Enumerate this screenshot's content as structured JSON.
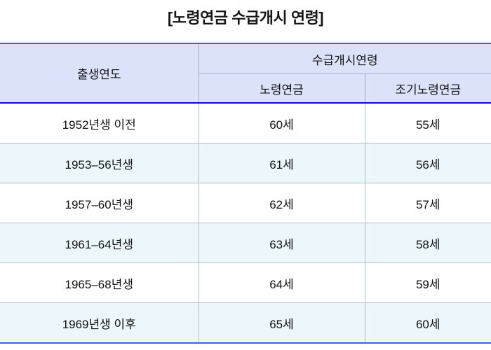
{
  "title": "[노령연금 수급개시 연령]",
  "table": {
    "header": {
      "birth_year": "출생연도",
      "start_age_group": "수급개시연령",
      "old_age_pension": "노령연금",
      "early_old_age_pension": "조기노령연금"
    },
    "rows": [
      {
        "birth": "1952년생 이전",
        "old": "60세",
        "early": "55세"
      },
      {
        "birth": "1953–56년생",
        "old": "61세",
        "early": "56세"
      },
      {
        "birth": "1957–60년생",
        "old": "62세",
        "early": "57세"
      },
      {
        "birth": "1961–64년생",
        "old": "63세",
        "early": "58세"
      },
      {
        "birth": "1965–68년생",
        "old": "64세",
        "early": "59세"
      },
      {
        "birth": "1969년생 이후",
        "old": "65세",
        "early": "60세"
      }
    ]
  },
  "colors": {
    "outer_border_blue": "#3a67d1",
    "header_bottom_blue": "#0a0ace",
    "header_bg": "#dbe2f9",
    "stripe_row_bg": "#ecf7fc",
    "grid_line_header": "#a3accb",
    "grid_line_body": "#aec2ce",
    "text": "#121212"
  },
  "chart_data": {
    "type": "table",
    "title": "[노령연금 수급개시 연령]",
    "column_group": {
      "label": "수급개시연령",
      "spans": [
        "노령연금",
        "조기노령연금"
      ]
    },
    "columns": [
      "출생연도",
      "노령연금",
      "조기노령연금"
    ],
    "rows": [
      [
        "1952년생 이전",
        "60세",
        "55세"
      ],
      [
        "1953–56년생",
        "61세",
        "56세"
      ],
      [
        "1957–60년생",
        "62세",
        "57세"
      ],
      [
        "1961–64년생",
        "63세",
        "58세"
      ],
      [
        "1965–68년생",
        "64세",
        "59세"
      ],
      [
        "1969년생 이후",
        "65세",
        "60세"
      ]
    ]
  }
}
